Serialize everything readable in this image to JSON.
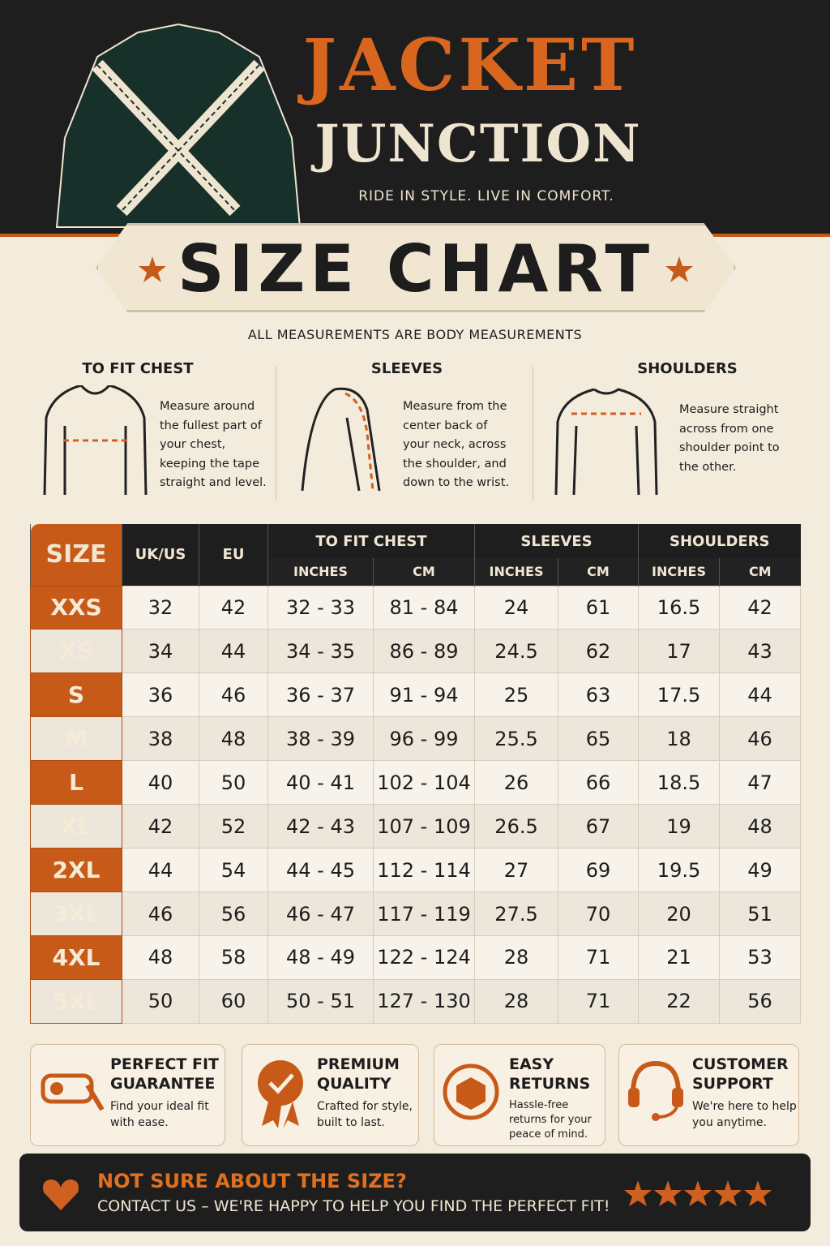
{
  "header": {
    "brand_line1": "JACKET",
    "brand_line2": "JUNCTION",
    "tagline": "RIDE IN STYLE. LIVE IN COMFORT.",
    "title": "SIZE CHART",
    "note": "ALL MEASUREMENTS ARE BODY MEASUREMENTS"
  },
  "guides": [
    {
      "title": "TO FIT CHEST",
      "text": "Measure around the fullest part of your chest, keeping the tape straight and level."
    },
    {
      "title": "SLEEVES",
      "text": "Measure from the center back of your neck, across the shoulder, and down to the wrist."
    },
    {
      "title": "SHOULDERS",
      "text": "Measure straight across from one shoulder point to the other."
    }
  ],
  "table": {
    "size_header": "SIZE",
    "col_headers": [
      "UK/US",
      "EU"
    ],
    "groups": [
      {
        "label": "TO FIT CHEST",
        "sub": [
          "INCHES",
          "CM"
        ]
      },
      {
        "label": "SLEEVES",
        "sub": [
          "INCHES",
          "CM"
        ]
      },
      {
        "label": "SHOULDERS",
        "sub": [
          "INCHES",
          "CM"
        ]
      }
    ],
    "rows": [
      [
        "XXS",
        "32",
        "42",
        "32 - 33",
        "81 - 84",
        "24",
        "61",
        "16.5",
        "42"
      ],
      [
        "XS",
        "34",
        "44",
        "34 - 35",
        "86 - 89",
        "24.5",
        "62",
        "17",
        "43"
      ],
      [
        "S",
        "36",
        "46",
        "36 - 37",
        "91 - 94",
        "25",
        "63",
        "17.5",
        "44"
      ],
      [
        "M",
        "38",
        "48",
        "38 - 39",
        "96 - 99",
        "25.5",
        "65",
        "18",
        "46"
      ],
      [
        "L",
        "40",
        "50",
        "40 - 41",
        "102 - 104",
        "26",
        "66",
        "18.5",
        "47"
      ],
      [
        "XL",
        "42",
        "52",
        "42 - 43",
        "107 - 109",
        "26.5",
        "67",
        "19",
        "48"
      ],
      [
        "2XL",
        "44",
        "54",
        "44 - 45",
        "112 - 114",
        "27",
        "69",
        "19.5",
        "49"
      ],
      [
        "3XL",
        "46",
        "56",
        "46 - 47",
        "117 - 119",
        "27.5",
        "70",
        "20",
        "51"
      ],
      [
        "4XL",
        "48",
        "58",
        "48 - 49",
        "122 - 124",
        "28",
        "71",
        "21",
        "53"
      ],
      [
        "5XL",
        "50",
        "60",
        "50 - 51",
        "127 - 130",
        "28",
        "71",
        "22",
        "56"
      ]
    ]
  },
  "features": [
    {
      "title": "PERFECT FIT GUARANTEE",
      "text": "Find your ideal fit with ease."
    },
    {
      "title": "PREMIUM QUALITY",
      "text": "Crafted for style, built to last."
    },
    {
      "title": "EASY RETURNS",
      "text": "Hassle-free returns for your peace of mind."
    },
    {
      "title": "CUSTOMER SUPPORT",
      "text": "We're here to help you anytime."
    }
  ],
  "footer": {
    "heading": "NOT SURE ABOUT THE SIZE?",
    "text": "CONTACT US – WE'RE HAPPY TO HELP YOU FIND THE PERFECT FIT!"
  }
}
